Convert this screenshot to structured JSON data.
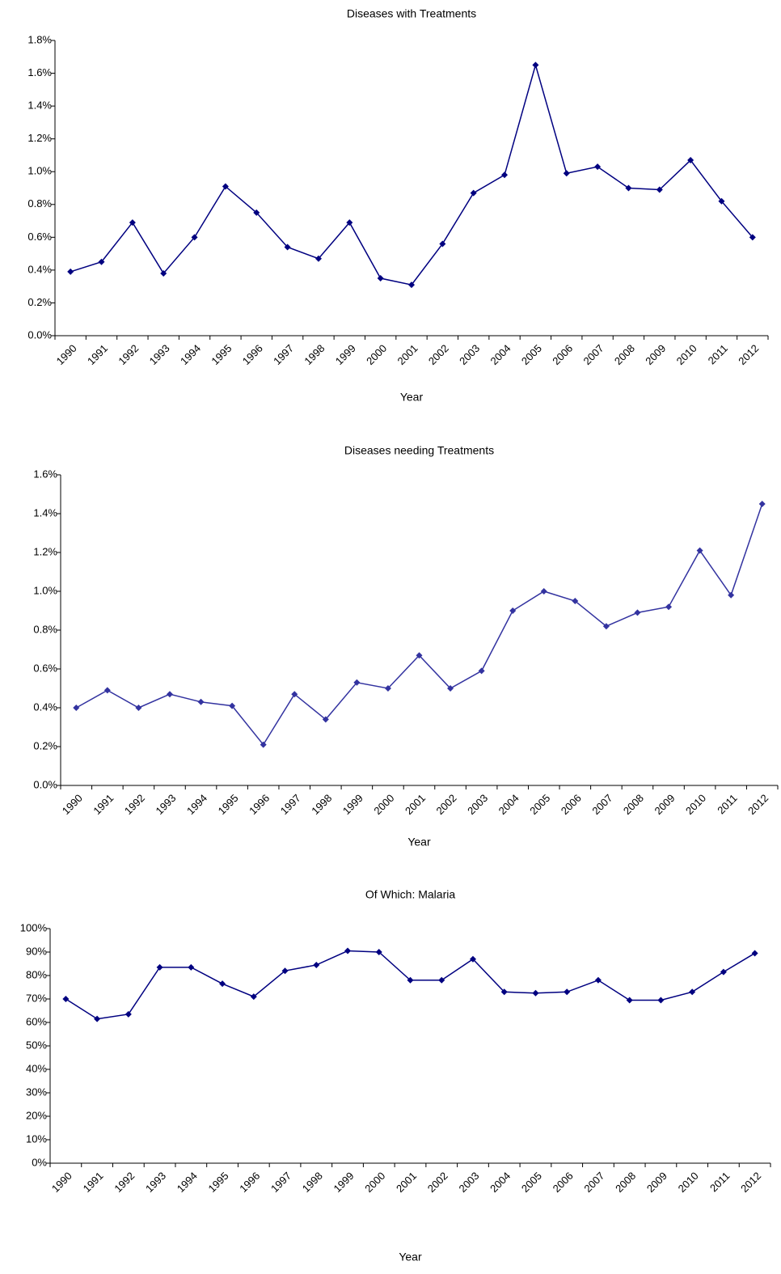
{
  "chart_data": [
    {
      "type": "line",
      "title": "Diseases with Treatments",
      "x_label": "Year",
      "categories": [
        "1990",
        "1991",
        "1992",
        "1993",
        "1994",
        "1995",
        "1996",
        "1997",
        "1998",
        "1999",
        "2000",
        "2001",
        "2002",
        "2003",
        "2004",
        "2005",
        "2006",
        "2007",
        "2008",
        "2009",
        "2010",
        "2011",
        "2012"
      ],
      "series": [
        {
          "name": "Diseases with Treatments",
          "color": "#000080",
          "values": [
            0.39,
            0.45,
            0.69,
            0.38,
            0.6,
            0.91,
            0.75,
            0.54,
            0.47,
            0.69,
            0.35,
            0.31,
            0.56,
            0.87,
            0.98,
            1.65,
            0.99,
            1.03,
            0.9,
            0.89,
            1.07,
            0.82,
            0.6
          ]
        }
      ],
      "ylim": [
        0,
        1.8
      ],
      "yticks": [
        {
          "value": 0,
          "label": "0.0%"
        },
        {
          "value": 0.2,
          "label": "0.2%"
        },
        {
          "value": 0.4,
          "label": "0.4%"
        },
        {
          "value": 0.6,
          "label": "0.6%"
        },
        {
          "value": 0.8,
          "label": "0.8%"
        },
        {
          "value": 1.0,
          "label": "1.0%"
        },
        {
          "value": 1.2,
          "label": "1.2%"
        },
        {
          "value": 1.4,
          "label": "1.4%"
        },
        {
          "value": 1.6,
          "label": "1.6%"
        },
        {
          "value": 1.8,
          "label": "1.8%"
        }
      ]
    },
    {
      "type": "line",
      "title": "Diseases needing Treatments",
      "x_label": "Year",
      "categories": [
        "1990",
        "1991",
        "1992",
        "1993",
        "1994",
        "1995",
        "1996",
        "1997",
        "1998",
        "1999",
        "2000",
        "2001",
        "2002",
        "2003",
        "2004",
        "2005",
        "2006",
        "2007",
        "2008",
        "2009",
        "2010",
        "2011",
        "2012"
      ],
      "series": [
        {
          "name": "Diseases needing Treatments",
          "color": "#3333a0",
          "values": [
            0.4,
            0.49,
            0.4,
            0.47,
            0.43,
            0.41,
            0.21,
            0.47,
            0.34,
            0.53,
            0.5,
            0.67,
            0.5,
            0.59,
            0.9,
            1.0,
            0.95,
            0.82,
            0.89,
            0.92,
            1.21,
            0.98,
            1.45
          ]
        }
      ],
      "ylim": [
        0,
        1.6
      ],
      "yticks": [
        {
          "value": 0,
          "label": "0.0%"
        },
        {
          "value": 0.2,
          "label": "0.2%"
        },
        {
          "value": 0.4,
          "label": "0.4%"
        },
        {
          "value": 0.6,
          "label": "0.6%"
        },
        {
          "value": 0.8,
          "label": "0.8%"
        },
        {
          "value": 1.0,
          "label": "1.0%"
        },
        {
          "value": 1.2,
          "label": "1.2%"
        },
        {
          "value": 1.4,
          "label": "1.4%"
        },
        {
          "value": 1.6,
          "label": "1.6%"
        }
      ]
    },
    {
      "type": "line",
      "title": "Of Which:  Malaria",
      "x_label": "Year",
      "categories": [
        "1990",
        "1991",
        "1992",
        "1993",
        "1994",
        "1995",
        "1996",
        "1997",
        "1998",
        "1999",
        "2000",
        "2001",
        "2002",
        "2003",
        "2004",
        "2005",
        "2006",
        "2007",
        "2008",
        "2009",
        "2010",
        "2011",
        "2012"
      ],
      "series": [
        {
          "name": "Of Which:  Malaria",
          "color": "#000080",
          "values": [
            70,
            61.5,
            63.5,
            83.5,
            83.5,
            76.5,
            71,
            82,
            84.5,
            90.5,
            90,
            78,
            78,
            87,
            73,
            72.5,
            73,
            78,
            69.5,
            69.5,
            73,
            81.5,
            89.5
          ]
        }
      ],
      "ylim": [
        0,
        100
      ],
      "yticks": [
        {
          "value": 0,
          "label": "0%"
        },
        {
          "value": 10,
          "label": "10%"
        },
        {
          "value": 20,
          "label": "20%"
        },
        {
          "value": 30,
          "label": "30%"
        },
        {
          "value": 40,
          "label": "40%"
        },
        {
          "value": 50,
          "label": "50%"
        },
        {
          "value": 60,
          "label": "60%"
        },
        {
          "value": 70,
          "label": "70%"
        },
        {
          "value": 80,
          "label": "80%"
        },
        {
          "value": 90,
          "label": "90%"
        },
        {
          "value": 100,
          "label": "100%"
        }
      ]
    }
  ]
}
